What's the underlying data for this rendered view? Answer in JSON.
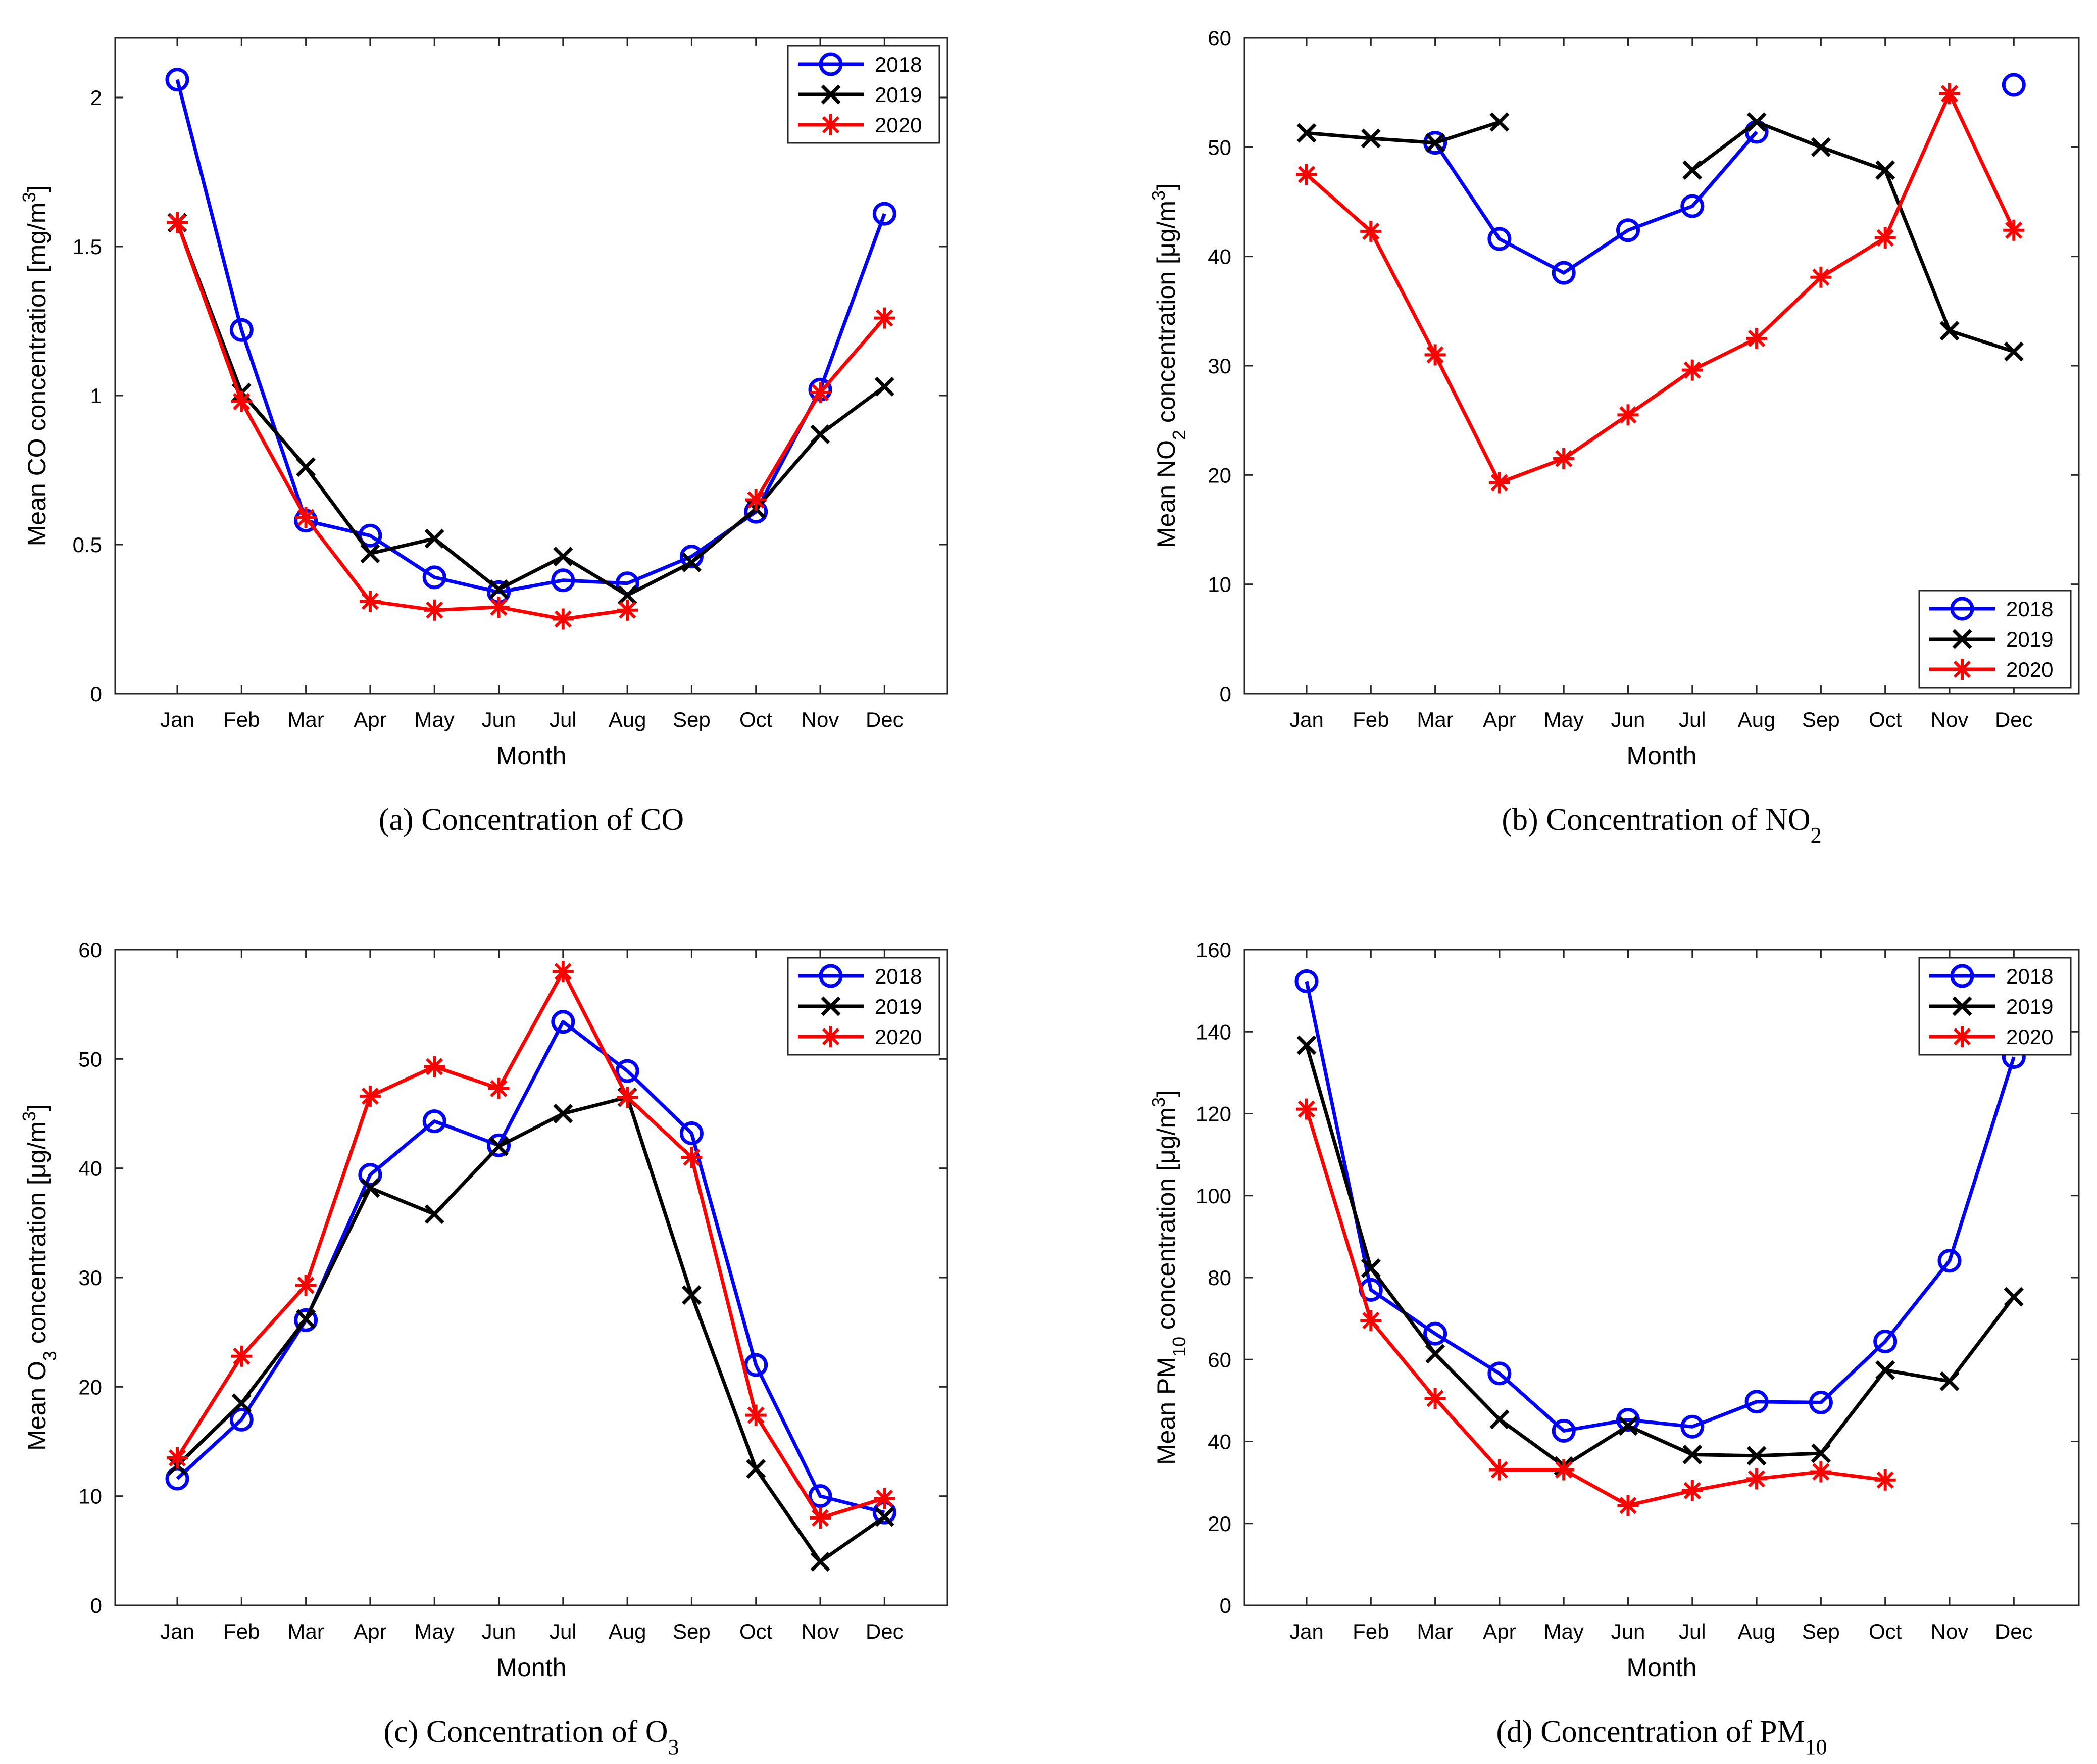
{
  "chart_data": [
    {
      "type": "line",
      "panel": "a",
      "caption": "(a)  Concentration of CO",
      "caption_parts": {
        "prefix": "(a)  Concentration of CO",
        "sub": ""
      },
      "categories": [
        "Jan",
        "Feb",
        "Mar",
        "Apr",
        "May",
        "Jun",
        "Jul",
        "Aug",
        "Sep",
        "Oct",
        "Nov",
        "Dec"
      ],
      "xlabel": "Month",
      "ylabel_parts": {
        "pre": "Mean CO concentration [mg/m",
        "sub": "",
        "mid": "",
        "sup": "3",
        "post": "]"
      },
      "ylim": [
        0,
        2.2
      ],
      "yticks": [
        0,
        0.5,
        1,
        1.5,
        2
      ],
      "ytick_labels": [
        "0",
        "0.5",
        "1",
        "1.5",
        "2"
      ],
      "legend_position": "top-right",
      "series": [
        {
          "name": "2018",
          "color": "#0000ff",
          "marker": "circle",
          "values": [
            2.06,
            1.22,
            0.58,
            0.53,
            0.39,
            0.34,
            0.38,
            0.37,
            0.46,
            0.61,
            1.02,
            1.61
          ]
        },
        {
          "name": "2019",
          "color": "#000000",
          "marker": "x",
          "values": [
            1.58,
            1.01,
            0.76,
            0.47,
            0.52,
            0.35,
            0.46,
            0.33,
            0.44,
            0.62,
            0.87,
            1.03
          ]
        },
        {
          "name": "2020",
          "color": "#ff0000",
          "marker": "asterisk",
          "values": [
            1.58,
            0.98,
            0.59,
            0.31,
            0.28,
            0.29,
            0.25,
            0.28,
            null,
            0.65,
            1.01,
            1.26
          ]
        }
      ]
    },
    {
      "type": "line",
      "panel": "b",
      "caption": "(b)  Concentration of NO2",
      "caption_parts": {
        "prefix": "(b)  Concentration of NO",
        "sub": "2"
      },
      "categories": [
        "Jan",
        "Feb",
        "Mar",
        "Apr",
        "May",
        "Jun",
        "Jul",
        "Aug",
        "Sep",
        "Oct",
        "Nov",
        "Dec"
      ],
      "xlabel": "Month",
      "ylabel_parts": {
        "pre": "Mean NO",
        "sub": "2",
        "mid": " concentration [μg/m",
        "sup": "3",
        "post": "]"
      },
      "ylim": [
        0,
        60
      ],
      "yticks": [
        0,
        10,
        20,
        30,
        40,
        50,
        60
      ],
      "ytick_labels": [
        "0",
        "10",
        "20",
        "30",
        "40",
        "50",
        "60"
      ],
      "legend_position": "bottom-right",
      "series": [
        {
          "name": "2018",
          "color": "#0000ff",
          "marker": "circle",
          "values": [
            null,
            null,
            50.4,
            41.6,
            38.5,
            42.4,
            44.6,
            51.4,
            null,
            null,
            null,
            55.7
          ]
        },
        {
          "name": "2019",
          "color": "#000000",
          "marker": "x",
          "values": [
            51.3,
            50.8,
            50.4,
            52.3,
            null,
            null,
            47.9,
            52.3,
            50.0,
            47.9,
            33.2,
            31.3
          ]
        },
        {
          "name": "2020",
          "color": "#ff0000",
          "marker": "asterisk",
          "values": [
            47.5,
            42.3,
            31.0,
            19.3,
            21.5,
            25.5,
            29.6,
            32.5,
            38.1,
            41.7,
            54.9,
            42.4
          ]
        }
      ]
    },
    {
      "type": "line",
      "panel": "c",
      "caption": "(c)  Concentration of O3",
      "caption_parts": {
        "prefix": "(c)  Concentration of O",
        "sub": "3"
      },
      "categories": [
        "Jan",
        "Feb",
        "Mar",
        "Apr",
        "May",
        "Jun",
        "Jul",
        "Aug",
        "Sep",
        "Oct",
        "Nov",
        "Dec"
      ],
      "xlabel": "Month",
      "ylabel_parts": {
        "pre": "Mean O",
        "sub": "3",
        "mid": " concentration [μg/m",
        "sup": "3",
        "post": "]"
      },
      "ylim": [
        0,
        60
      ],
      "yticks": [
        0,
        10,
        20,
        30,
        40,
        50,
        60
      ],
      "ytick_labels": [
        "0",
        "10",
        "20",
        "30",
        "40",
        "50",
        "60"
      ],
      "legend_position": "top-right",
      "series": [
        {
          "name": "2018",
          "color": "#0000ff",
          "marker": "circle",
          "values": [
            11.6,
            17.0,
            26.1,
            39.4,
            44.3,
            42.1,
            53.4,
            48.9,
            43.2,
            22.0,
            10.0,
            8.5
          ]
        },
        {
          "name": "2019",
          "color": "#000000",
          "marker": "x",
          "values": [
            12.8,
            18.5,
            26.2,
            38.2,
            35.8,
            42.0,
            45.0,
            46.5,
            28.4,
            12.5,
            4.0,
            8.1
          ]
        },
        {
          "name": "2020",
          "color": "#ff0000",
          "marker": "asterisk",
          "values": [
            13.5,
            22.8,
            29.3,
            46.6,
            49.3,
            47.3,
            58.0,
            46.5,
            41.0,
            17.4,
            8.0,
            9.8
          ]
        }
      ]
    },
    {
      "type": "line",
      "panel": "d",
      "caption": "(d)  Concentration of PM10",
      "caption_parts": {
        "prefix": "(d)  Concentration of PM",
        "sub": "10"
      },
      "categories": [
        "Jan",
        "Feb",
        "Mar",
        "Apr",
        "May",
        "Jun",
        "Jul",
        "Aug",
        "Sep",
        "Oct",
        "Nov",
        "Dec"
      ],
      "xlabel": "Month",
      "ylabel_parts": {
        "pre": "Mean PM",
        "sub": "10",
        "mid": " concentration [μg/m",
        "sup": "3",
        "post": "]"
      },
      "ylim": [
        0,
        160
      ],
      "yticks": [
        0,
        20,
        40,
        60,
        80,
        100,
        120,
        140,
        160
      ],
      "ytick_labels": [
        "0",
        "20",
        "40",
        "60",
        "80",
        "100",
        "120",
        "140",
        "160"
      ],
      "legend_position": "top-right",
      "series": [
        {
          "name": "2018",
          "color": "#0000ff",
          "marker": "circle",
          "values": [
            152.3,
            77.0,
            66.3,
            56.6,
            42.6,
            45.3,
            43.6,
            49.7,
            49.5,
            64.4,
            84.1,
            133.8
          ]
        },
        {
          "name": "2019",
          "color": "#000000",
          "marker": "x",
          "values": [
            136.7,
            82.3,
            61.4,
            45.4,
            34.0,
            43.8,
            36.8,
            36.5,
            37.1,
            57.4,
            54.7,
            75.3
          ]
        },
        {
          "name": "2020",
          "color": "#ff0000",
          "marker": "asterisk",
          "values": [
            121.1,
            69.5,
            50.5,
            33.1,
            33.1,
            24.4,
            28.0,
            30.9,
            32.6,
            30.6,
            null,
            null
          ]
        }
      ]
    }
  ]
}
